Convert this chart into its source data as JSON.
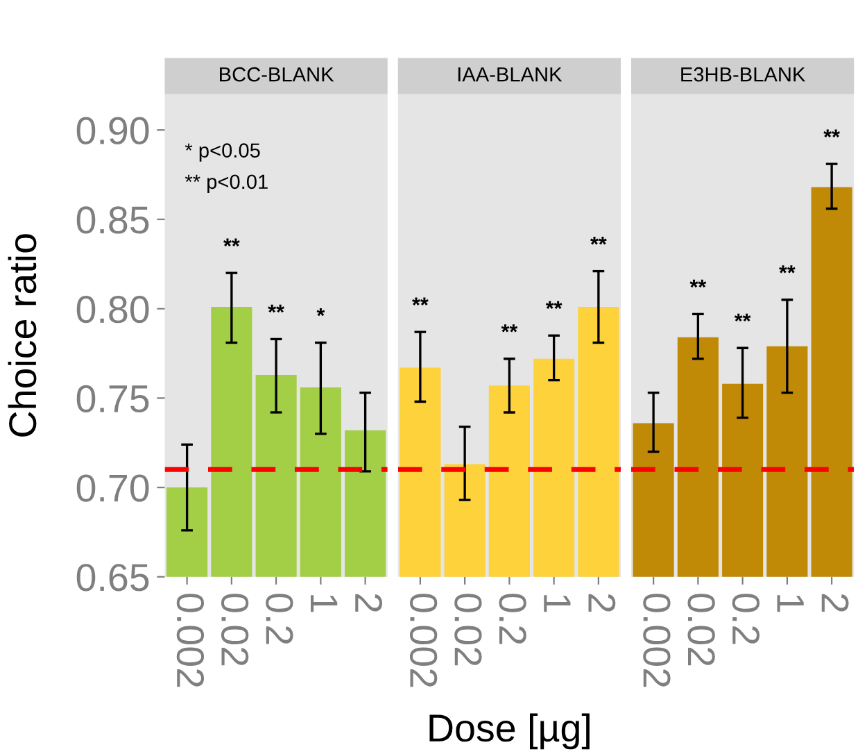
{
  "chart_data": [
    {
      "type": "bar",
      "title": "BCC-BLANK",
      "ylabel": "Choice ratio",
      "categories": [
        "0.002",
        "0.02",
        "0.2",
        "1",
        "2"
      ],
      "values": [
        0.7,
        0.801,
        0.763,
        0.756,
        0.732
      ],
      "color": "#a2cf45",
      "errors": [
        [
          0.676,
          0.724
        ],
        [
          0.781,
          0.82
        ],
        [
          0.742,
          0.783
        ],
        [
          0.73,
          0.781
        ],
        [
          0.709,
          0.753
        ]
      ],
      "ylim": [
        0.65,
        0.92
      ],
      "yticks": [
        0.65,
        {
          "value": 0.7,
          "label": "0.70"
        },
        0.75,
        {
          "value": 0.8,
          "label": "0.80"
        },
        0.85,
        {
          "value": 0.9,
          "label": "0.90"
        }
      ],
      "ref_lines": [
        {
          "axis": "y",
          "value": 0.71,
          "color": "#ff0000",
          "line_style": "dashed"
        }
      ],
      "annotations": [
        "* p<0.05",
        "** p<0.01",
        {
          "text": "**",
          "x": "0.02",
          "y": 0.82
        },
        {
          "text": "**",
          "x": "0.2",
          "y": 0.783
        },
        {
          "text": "*",
          "x": "1",
          "y": 0.781
        }
      ]
    },
    {
      "type": "bar",
      "title": "IAA-BLANK",
      "xlabel": "Dose [µg]",
      "categories": [
        "0.002",
        "0.02",
        "0.2",
        "1",
        "2"
      ],
      "values": [
        0.767,
        0.713,
        0.757,
        0.772,
        0.801
      ],
      "color": "#fdd23a",
      "errors": [
        [
          0.748,
          0.787
        ],
        [
          0.693,
          0.734
        ],
        [
          0.742,
          0.772
        ],
        [
          0.76,
          0.785
        ],
        [
          0.781,
          0.821
        ]
      ],
      "ylim": [
        0.65,
        0.92
      ],
      "tick_labels": "x",
      "ref_lines": [
        {
          "axis": "y",
          "value": 0.71,
          "color": "#ff0000",
          "line_style": "dashed"
        }
      ],
      "annotations": [
        {
          "text": "**",
          "x": "0.002",
          "y": 0.787
        },
        {
          "text": "**",
          "x": "0.2",
          "y": 0.772
        },
        {
          "text": "**",
          "x": "1",
          "y": 0.785
        },
        {
          "text": "**",
          "x": "2",
          "y": 0.821
        }
      ]
    },
    {
      "type": "bar",
      "title": "E3HB-BLANK",
      "categories": [
        "0.002",
        "0.02",
        "0.2",
        "1",
        "2"
      ],
      "values": [
        0.736,
        0.784,
        0.758,
        0.779,
        0.868
      ],
      "color": "#c08a07",
      "errors": [
        [
          0.72,
          0.753
        ],
        [
          0.772,
          0.797
        ],
        [
          0.739,
          0.778
        ],
        [
          0.753,
          0.805
        ],
        [
          0.856,
          0.881
        ]
      ],
      "ylim": [
        0.65,
        0.92
      ],
      "tick_labels": "x",
      "ref_lines": [
        {
          "axis": "y",
          "value": 0.71,
          "color": "#ff0000",
          "line_style": "dashed"
        }
      ],
      "annotations": [
        {
          "text": "**",
          "x": "0.02",
          "y": 0.797
        },
        {
          "text": "**",
          "x": "0.2",
          "y": 0.778
        },
        {
          "text": "**",
          "x": "1",
          "y": 0.805
        },
        {
          "text": "**",
          "x": "2",
          "y": 0.881
        }
      ]
    }
  ]
}
